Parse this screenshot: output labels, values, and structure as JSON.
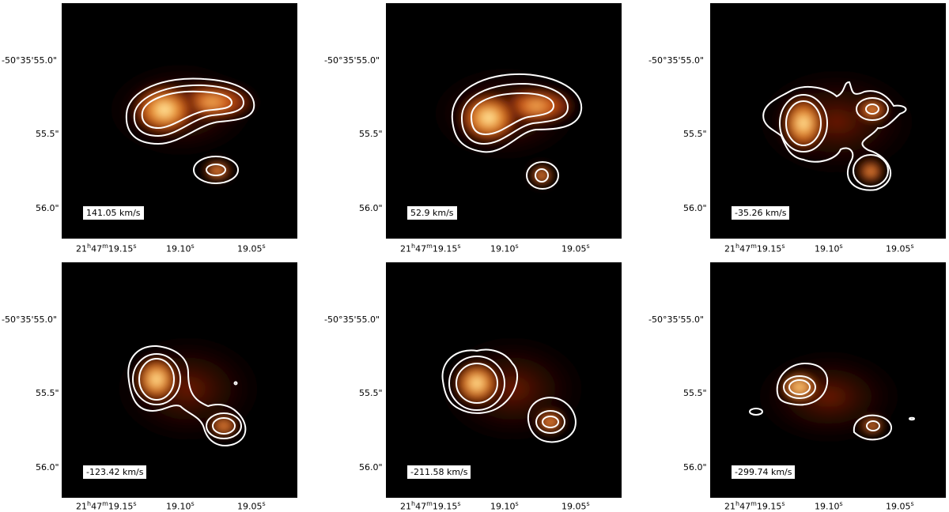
{
  "ra_ticks": [
    "21h47m19.15s",
    "19.10s",
    "19.05s"
  ],
  "dec_ticks": [
    "-50°35'55.0\"",
    "55.5\"",
    "56.0\""
  ],
  "colors": {
    "background": "#000000",
    "contour": "#ffffff"
  },
  "panels": [
    {
      "velocity": "141.05 km/s"
    },
    {
      "velocity": "52.9 km/s"
    },
    {
      "velocity": "-35.26 km/s"
    },
    {
      "velocity": "-123.42 km/s"
    },
    {
      "velocity": "-211.58 km/s"
    },
    {
      "velocity": "-299.74 km/s"
    }
  ]
}
